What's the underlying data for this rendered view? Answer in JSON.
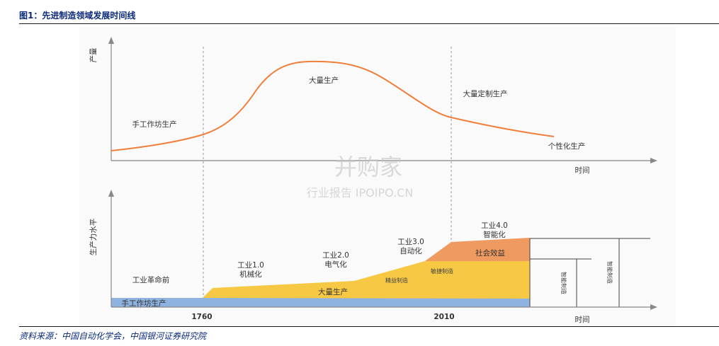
{
  "header": {
    "figure_title": "图1：先进制造领域发展时间线"
  },
  "footer": {
    "source": "资料来源：中国自动化学会，中国银河证券研究院"
  },
  "top_chart": {
    "y_axis_label": "产量",
    "x_axis_label": "时间",
    "curve_color": "#ef7f3a",
    "phases": [
      "手工作坊生产",
      "大量生产",
      "大量定制生产",
      "个性化生产"
    ]
  },
  "bottom_chart": {
    "y_axis_label": "生产力水平",
    "x_axis_label": "时间",
    "x_ticks": [
      "1760",
      "2010"
    ],
    "eras": [
      {
        "title": "工业革命前",
        "subtitle": ""
      },
      {
        "title": "工业1.0",
        "subtitle": "机械化"
      },
      {
        "title": "工业2.0",
        "subtitle": "电气化"
      },
      {
        "title": "工业3.0",
        "subtitle": "自动化"
      },
      {
        "title": "工业4.0",
        "subtitle": "智能化"
      }
    ],
    "bands": {
      "craft": "手工作坊生产",
      "mass": "大量生产",
      "lean": "精益制造",
      "agile": "敏捷制造",
      "social": "社会效益"
    },
    "side_labels": {
      "smart_manufacturing": "智能制造"
    },
    "colors": {
      "craft": "#8fb3e0",
      "mass": "#f7c843",
      "social": "#ef9a60"
    }
  },
  "watermark": {
    "brand": "并购家",
    "subtitle": "行业报告 IPOIPO.CN"
  }
}
